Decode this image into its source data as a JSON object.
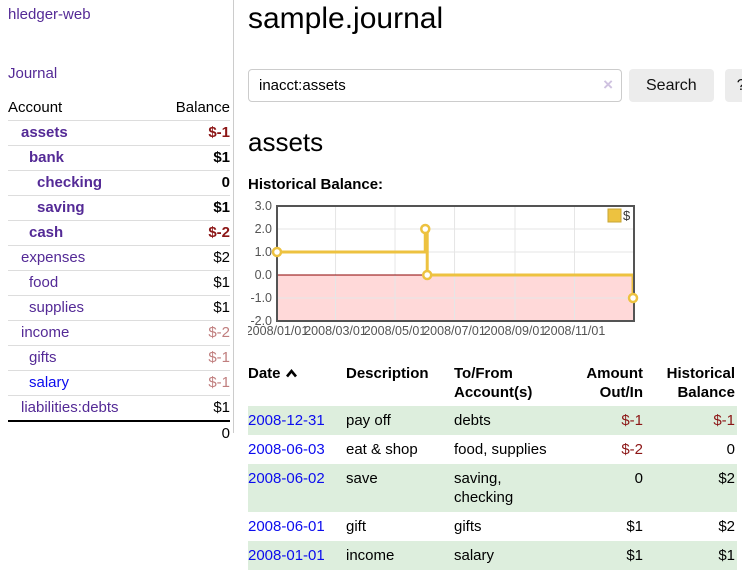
{
  "app": {
    "title": "hledger-web",
    "nav_journal": "Journal"
  },
  "sidebar": {
    "header": {
      "account": "Account",
      "balance": "Balance"
    },
    "accounts": [
      {
        "name": "assets",
        "depth": 1,
        "bold": true,
        "balance": "$-1",
        "balance_style": "neg-strong"
      },
      {
        "name": "bank",
        "depth": 2,
        "bold": true,
        "balance": "$1",
        "balance_style": "pos"
      },
      {
        "name": "checking",
        "depth": 3,
        "bold": true,
        "balance": "0",
        "balance_style": "pos"
      },
      {
        "name": "saving",
        "depth": 3,
        "bold": true,
        "balance": "$1",
        "balance_style": "pos"
      },
      {
        "name": "cash",
        "depth": 2,
        "bold": true,
        "balance": "$-2",
        "balance_style": "neg-strong"
      },
      {
        "name": "expenses",
        "depth": 1,
        "bold": false,
        "balance": "$2",
        "balance_style": "pos"
      },
      {
        "name": "food",
        "depth": 2,
        "bold": false,
        "balance": "$1",
        "balance_style": "pos"
      },
      {
        "name": "supplies",
        "depth": 2,
        "bold": false,
        "balance": "$1",
        "balance_style": "pos"
      },
      {
        "name": "income",
        "depth": 1,
        "bold": false,
        "balance": "$-2",
        "balance_style": "neg-soft"
      },
      {
        "name": "gifts",
        "depth": 2,
        "bold": false,
        "balance": "$-1",
        "balance_style": "neg-soft"
      },
      {
        "name": "salary",
        "depth": 2,
        "bold": false,
        "balance": "$-1",
        "balance_style": "neg-soft",
        "link_style": "unvisited"
      },
      {
        "name": "liabilities:debts",
        "depth": 1,
        "bold": false,
        "balance": "$1",
        "balance_style": "pos"
      }
    ],
    "total": "0"
  },
  "header": {
    "title": "sample.journal"
  },
  "search": {
    "value": "inacct:assets",
    "clear_icon": "×",
    "button": "Search",
    "help_button": "?"
  },
  "account_page": {
    "heading": "assets",
    "chart_label": "Historical Balance:"
  },
  "chart_data": {
    "type": "line",
    "title": "Historical Balance",
    "step": true,
    "legend": [
      {
        "label": "$",
        "color": "#edc240"
      }
    ],
    "legend_position": "top-right",
    "grid": true,
    "x_range": [
      "2008-01-01",
      "2009-01-01"
    ],
    "x_ticks": [
      "2008/01/01",
      "2008/03/01",
      "2008/05/01",
      "2008/07/01",
      "2008/09/01",
      "2008/11/01"
    ],
    "y_ticks": [
      3.0,
      2.0,
      1.0,
      0.0,
      -1.0,
      -2.0
    ],
    "ylim": [
      -2,
      3
    ],
    "points": [
      {
        "date": "2008-01-01",
        "value": 1
      },
      {
        "date": "2008-06-01",
        "value": 2
      },
      {
        "date": "2008-06-03",
        "value": 0
      },
      {
        "date": "2008-12-31",
        "value": -1
      }
    ],
    "series_color": "#edc240",
    "marker_fill": "#ffffff",
    "negative_region_color": "#ffd9d9",
    "zero_line_color": "#8b0000",
    "grid_color": "#e6e6e6",
    "axis_color": "#545454"
  },
  "register": {
    "columns": {
      "date": "Date",
      "description": "Description",
      "tofrom": "To/From Account(s)",
      "amount": "Amount Out/In",
      "balance": "Historical Balance"
    },
    "rows": [
      {
        "date": "2008-12-31",
        "description": "pay off",
        "accounts": "debts",
        "amount": "$-1",
        "amount_neg": true,
        "balance": "$-1",
        "balance_neg": true
      },
      {
        "date": "2008-06-03",
        "description": "eat & shop",
        "accounts": "food, supplies",
        "amount": "$-2",
        "amount_neg": true,
        "balance": "0",
        "balance_neg": false
      },
      {
        "date": "2008-06-02",
        "description": "save",
        "accounts": "saving, checking",
        "amount": "0",
        "amount_neg": false,
        "balance": "$2",
        "balance_neg": false
      },
      {
        "date": "2008-06-01",
        "description": "gift",
        "accounts": "gifts",
        "amount": "$1",
        "amount_neg": false,
        "balance": "$2",
        "balance_neg": false
      },
      {
        "date": "2008-01-01",
        "description": "income",
        "accounts": "salary",
        "amount": "$1",
        "amount_neg": false,
        "balance": "$1",
        "balance_neg": false
      }
    ]
  },
  "colors": {
    "link_purple": "#542a96",
    "link_blue": "#0c0cee",
    "negative_strong": "#8c1616",
    "negative_soft": "#c07e7e",
    "row_stripe_green": "#ddeedd",
    "button_bg": "#ececec",
    "divider": "#cccccc"
  }
}
